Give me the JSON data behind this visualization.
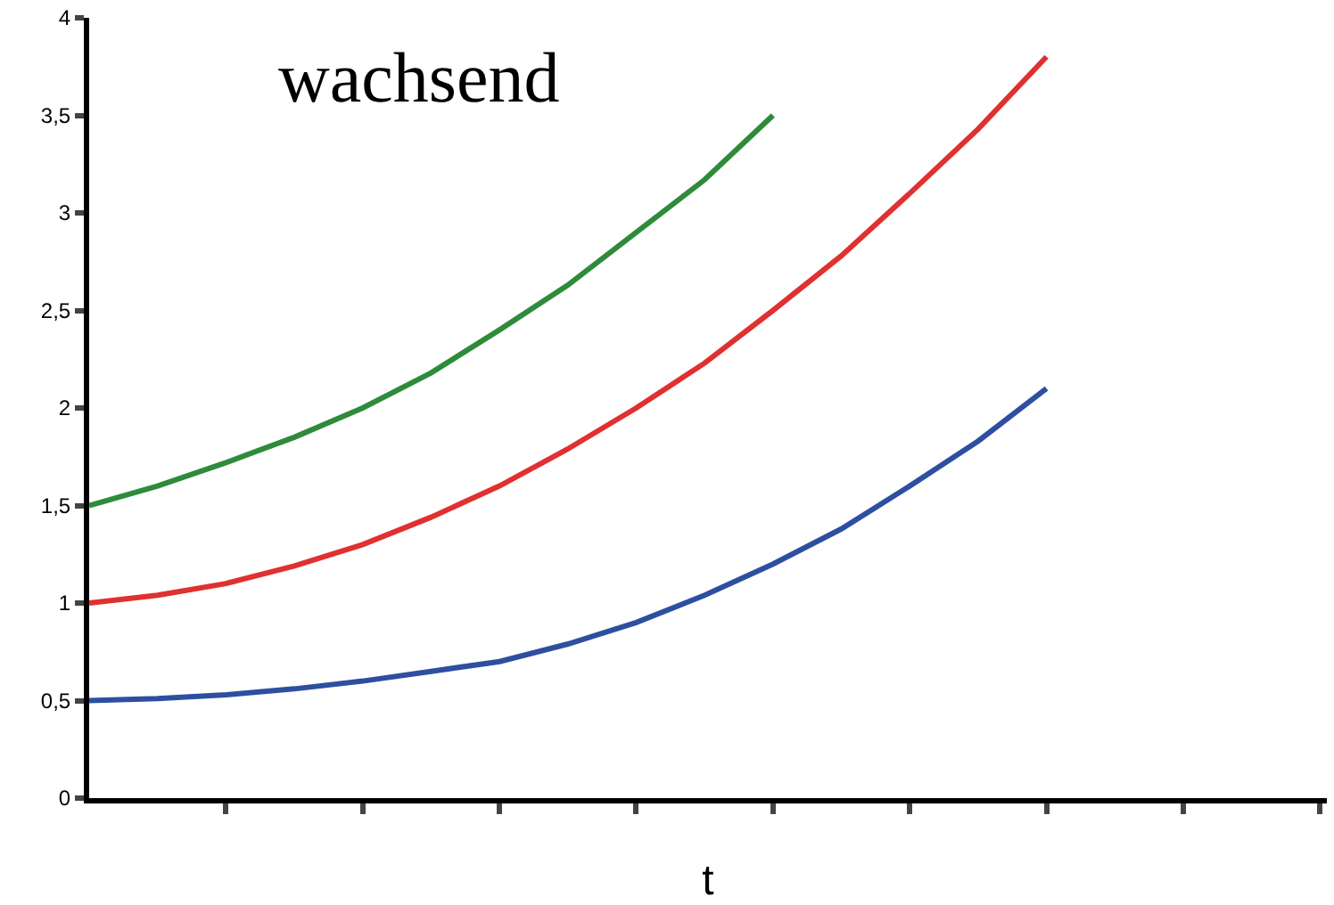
{
  "chart_data": {
    "type": "line",
    "title": "wachsend",
    "xlabel": "t",
    "categories": [
      null,
      null,
      null,
      null,
      null,
      null,
      null,
      null,
      null,
      null,
      null,
      null,
      null,
      null,
      null,
      null,
      null,
      null
    ],
    "ylim": [
      0,
      4
    ],
    "yticks": [
      {
        "value": 0,
        "label": "0"
      },
      {
        "value": 0.5,
        "label": "0,5"
      },
      {
        "value": 1,
        "label": "1"
      },
      {
        "value": 1.5,
        "label": "1,5"
      },
      {
        "value": 2,
        "label": "2"
      },
      {
        "value": 2.5,
        "label": "2,5"
      },
      {
        "value": 3,
        "label": "3"
      },
      {
        "value": 3.5,
        "label": "3,5"
      },
      {
        "value": 4,
        "label": "4"
      }
    ],
    "grid": false,
    "marker": "none",
    "line_style": "solid",
    "series": [
      {
        "color": "#2e8b3a",
        "values": [
          1.5,
          1.6,
          1.72,
          1.85,
          2.0,
          2.18,
          2.4,
          2.63,
          2.9,
          3.17,
          3.5,
          null,
          null,
          null,
          null,
          null,
          null,
          null
        ]
      },
      {
        "color": "#e03030",
        "values": [
          1.0,
          1.04,
          1.1,
          1.19,
          1.3,
          1.44,
          1.6,
          1.79,
          2.0,
          2.23,
          2.5,
          2.78,
          3.1,
          3.43,
          3.8,
          null,
          null,
          null
        ]
      },
      {
        "color": "#2e4fa0",
        "values": [
          0.5,
          0.51,
          0.53,
          0.56,
          0.6,
          0.65,
          0.7,
          0.79,
          0.9,
          1.04,
          1.2,
          1.38,
          1.6,
          1.83,
          2.1,
          null,
          null,
          null
        ]
      }
    ]
  }
}
